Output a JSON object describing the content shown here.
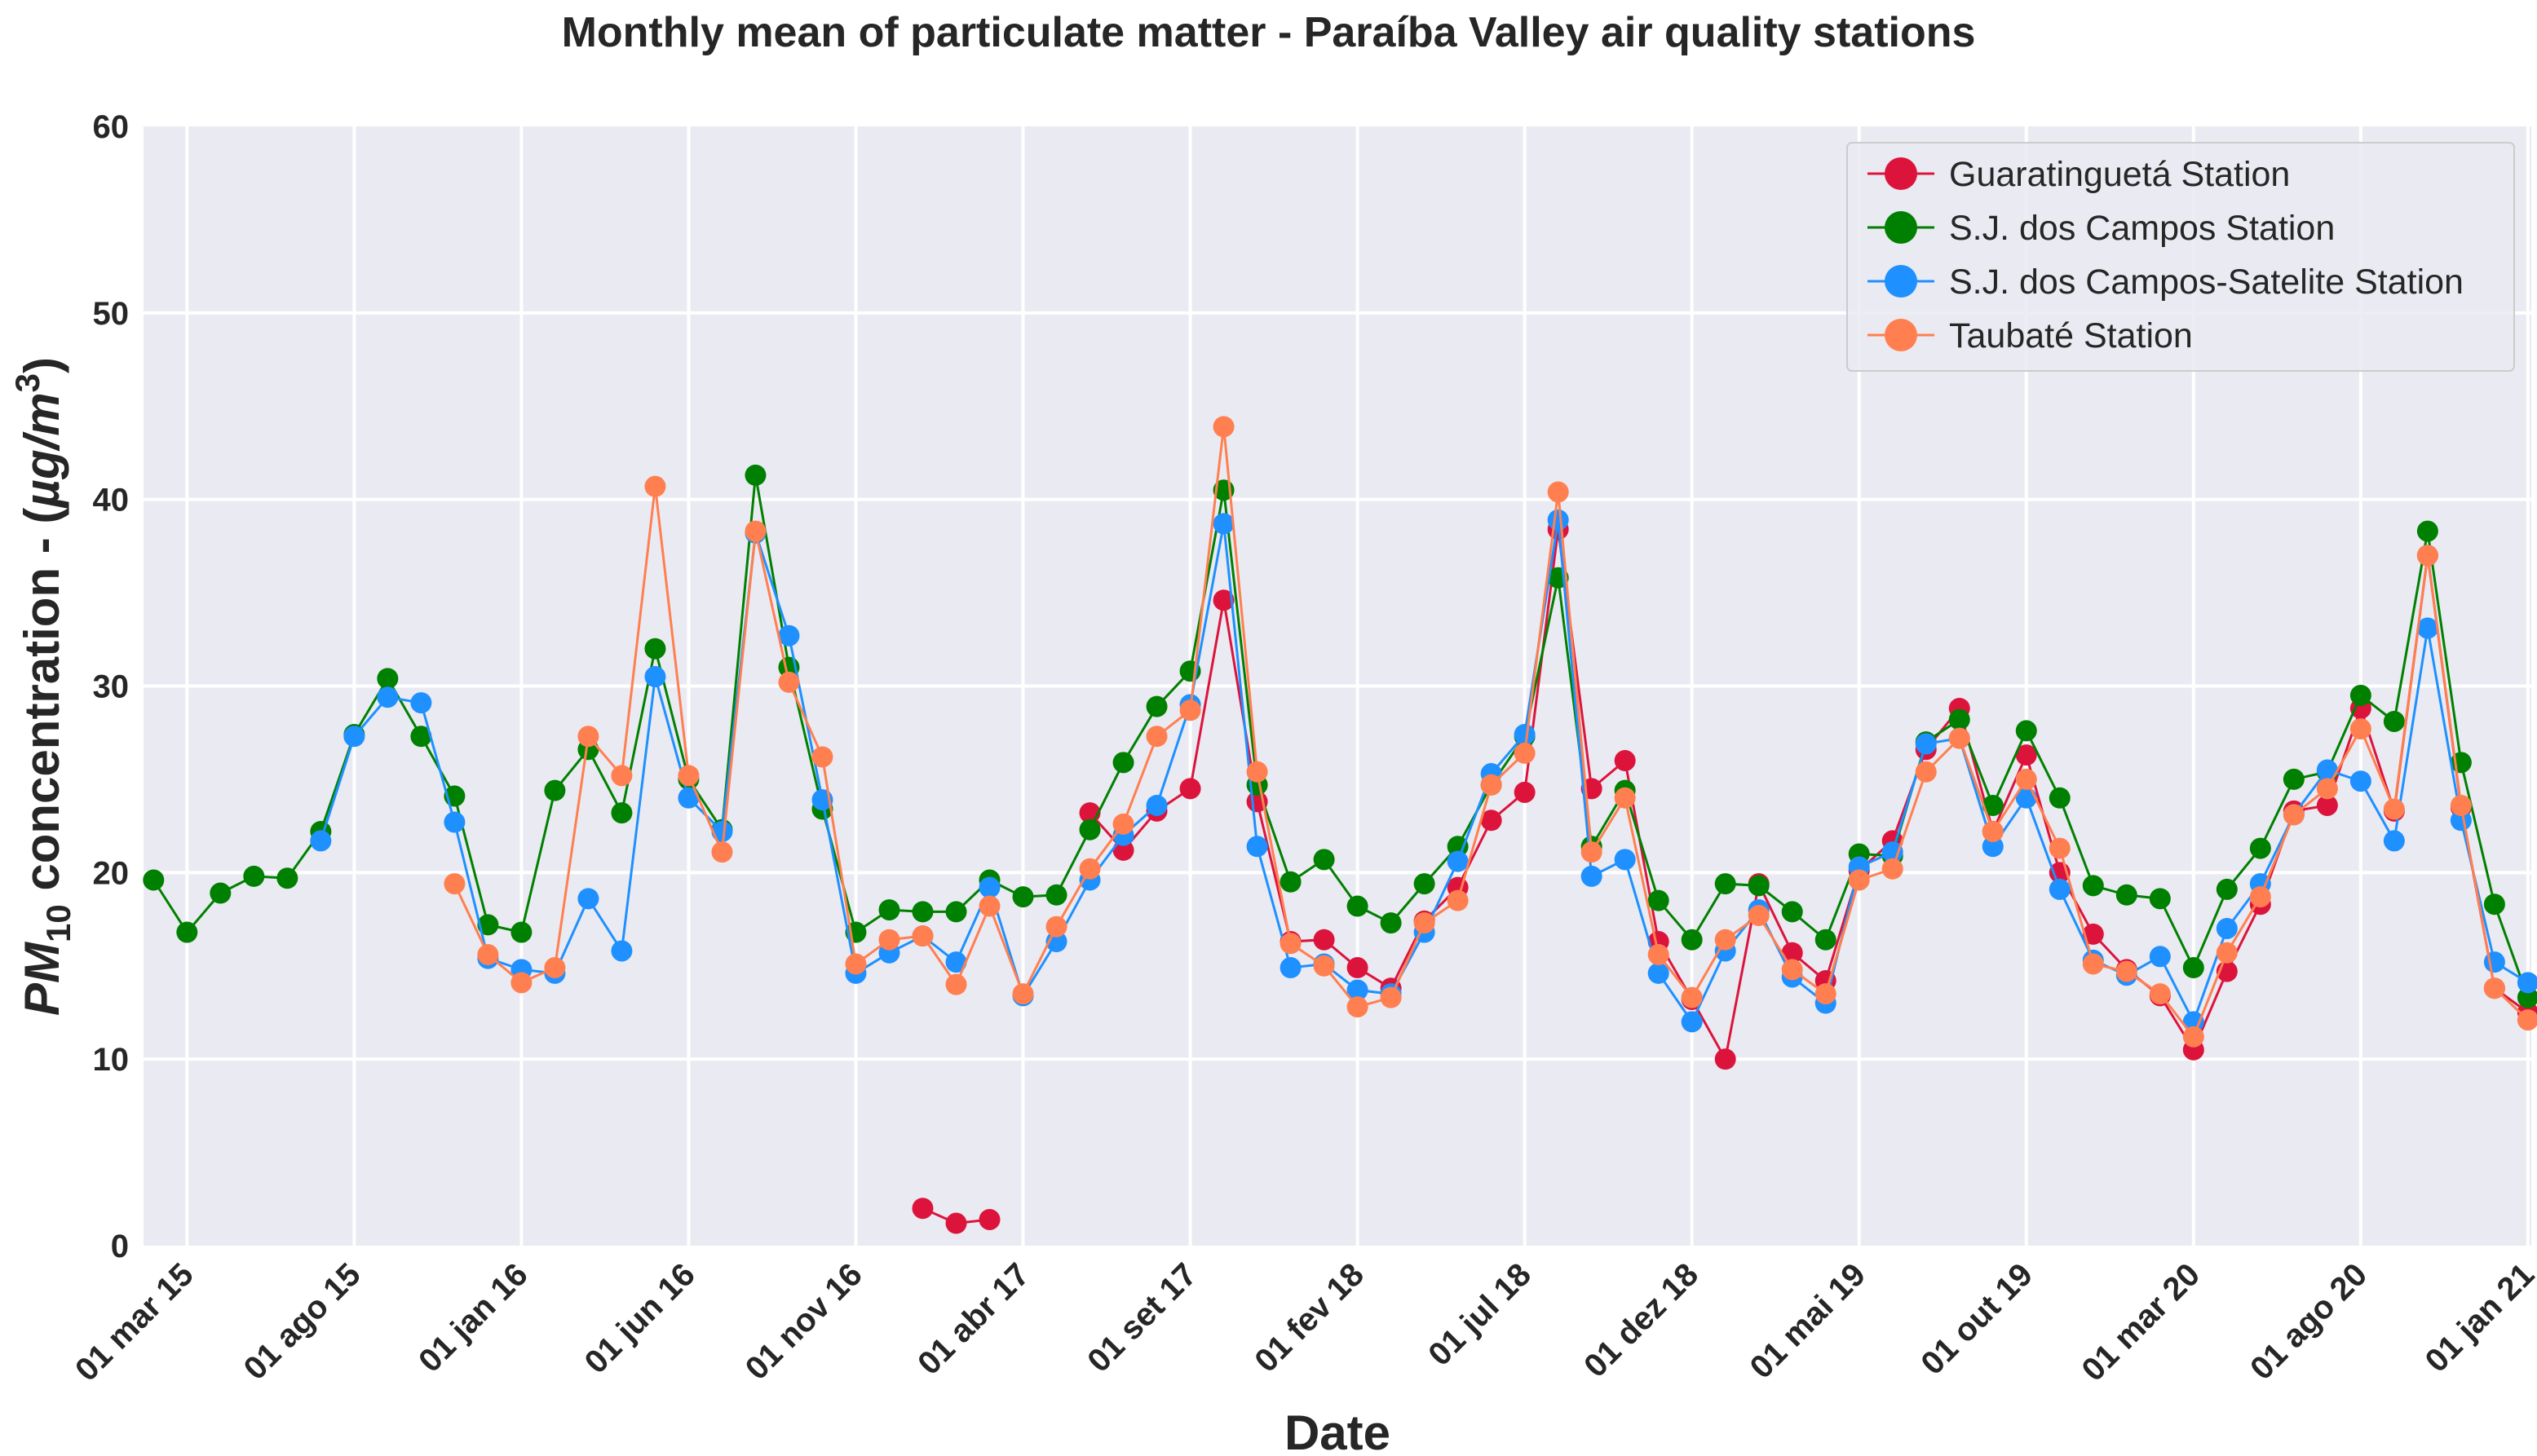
{
  "chart_data": {
    "type": "line",
    "title": "Monthly mean of particulate matter - Paraíba Valley air quality stations",
    "xlabel": "Date",
    "ylabel": "PM10 concentration - (µg/m3)",
    "ylabel_parts": {
      "pm": "PM",
      "sub": "10",
      "mid": " concentration - (",
      "unit": "µg/m",
      "sup": "3",
      "end": ")"
    },
    "ylim": [
      0,
      60
    ],
    "yticks": [
      0,
      10,
      20,
      30,
      40,
      50,
      60
    ],
    "xlim": [
      -1.3,
      70.1
    ],
    "xticks": [
      {
        "month": 0,
        "label": "01 mar 15"
      },
      {
        "month": 5,
        "label": "01 ago 15"
      },
      {
        "month": 10,
        "label": "01 jan 16"
      },
      {
        "month": 15,
        "label": "01 jun 16"
      },
      {
        "month": 20,
        "label": "01 nov 16"
      },
      {
        "month": 25,
        "label": "01 abr 17"
      },
      {
        "month": 30,
        "label": "01 set 17"
      },
      {
        "month": 35,
        "label": "01 fev 18"
      },
      {
        "month": 40,
        "label": "01 jul 18"
      },
      {
        "month": 45,
        "label": "01 dez 18"
      },
      {
        "month": 50,
        "label": "01 mai 19"
      },
      {
        "month": 55,
        "label": "01 out 19"
      },
      {
        "month": 60,
        "label": "01 mar 20"
      },
      {
        "month": 65,
        "label": "01 ago 20"
      },
      {
        "month": 70,
        "label": "01 jan 21"
      }
    ],
    "x_unit": "months offset from 01 mar 15; points plotted at month-end (offset - 1)",
    "grid": true,
    "legend_position": "top-right",
    "series": [
      {
        "name": "Guaratinguetá Station",
        "color": "#dc143c",
        "segments": [
          [
            [
              23,
              2.0
            ],
            [
              24,
              1.2
            ],
            [
              25,
              1.4
            ]
          ],
          [
            [
              28,
              23.2
            ],
            [
              29,
              21.2
            ],
            [
              30,
              23.3
            ],
            [
              31,
              24.5
            ],
            [
              32,
              34.6
            ],
            [
              33,
              23.8
            ],
            [
              34,
              16.3
            ],
            [
              35,
              16.4
            ],
            [
              36,
              14.9
            ],
            [
              37,
              13.8
            ],
            [
              38,
              17.4
            ],
            [
              39,
              19.2
            ],
            [
              40,
              22.8
            ],
            [
              41,
              24.3
            ],
            [
              42,
              38.4
            ],
            [
              43,
              24.5
            ],
            [
              44,
              26.0
            ],
            [
              45,
              16.3
            ],
            [
              46,
              13.2
            ],
            [
              47,
              10.0
            ],
            [
              48,
              19.4
            ],
            [
              49,
              15.7
            ],
            [
              50,
              14.2
            ],
            [
              51,
              20.1
            ],
            [
              52,
              21.7
            ],
            [
              53,
              26.6
            ],
            [
              54,
              28.8
            ],
            [
              55,
              22.2
            ],
            [
              56,
              26.3
            ],
            [
              57,
              20.0
            ],
            [
              58,
              16.7
            ],
            [
              59,
              14.8
            ],
            [
              60,
              13.4
            ],
            [
              61,
              10.5
            ],
            [
              62,
              14.7
            ],
            [
              63,
              18.3
            ],
            [
              64,
              23.3
            ],
            [
              65,
              23.6
            ],
            [
              66,
              28.8
            ],
            [
              67,
              23.3
            ],
            [
              68,
              37.0
            ],
            [
              69,
              23.5
            ],
            [
              70,
              13.8
            ],
            [
              71,
              12.5
            ]
          ]
        ]
      },
      {
        "name": "S.J. dos Campos Station",
        "color": "#008000",
        "segments": [
          [
            [
              0,
              19.6
            ],
            [
              1,
              16.8
            ],
            [
              2,
              18.9
            ],
            [
              3,
              19.8
            ],
            [
              4,
              19.7
            ],
            [
              5,
              22.2
            ],
            [
              6,
              27.4
            ],
            [
              7,
              30.4
            ],
            [
              8,
              27.3
            ],
            [
              9,
              24.1
            ],
            [
              10,
              17.2
            ],
            [
              11,
              16.8
            ],
            [
              12,
              24.4
            ],
            [
              13,
              26.6
            ],
            [
              14,
              23.2
            ],
            [
              15,
              32.0
            ],
            [
              16,
              25.0
            ],
            [
              17,
              22.3
            ],
            [
              18,
              41.3
            ],
            [
              19,
              31.0
            ],
            [
              20,
              23.4
            ],
            [
              21,
              16.8
            ],
            [
              22,
              18.0
            ],
            [
              23,
              17.9
            ],
            [
              24,
              17.9
            ],
            [
              25,
              19.6
            ],
            [
              26,
              18.7
            ],
            [
              27,
              18.8
            ],
            [
              28,
              22.3
            ],
            [
              29,
              25.9
            ],
            [
              30,
              28.9
            ],
            [
              31,
              30.8
            ],
            [
              32,
              40.5
            ],
            [
              33,
              24.7
            ],
            [
              34,
              19.5
            ],
            [
              35,
              20.7
            ],
            [
              36,
              18.2
            ],
            [
              37,
              17.3
            ],
            [
              38,
              19.4
            ],
            [
              39,
              21.4
            ],
            [
              40,
              24.7
            ],
            [
              41,
              27.3
            ],
            [
              42,
              35.8
            ],
            [
              43,
              21.4
            ],
            [
              44,
              24.4
            ],
            [
              45,
              18.5
            ],
            [
              46,
              16.4
            ],
            [
              47,
              19.4
            ],
            [
              48,
              19.3
            ],
            [
              49,
              17.9
            ],
            [
              50,
              16.4
            ],
            [
              51,
              21.0
            ],
            [
              52,
              20.9
            ],
            [
              53,
              27.0
            ],
            [
              54,
              28.2
            ],
            [
              55,
              23.6
            ],
            [
              56,
              27.6
            ],
            [
              57,
              24.0
            ],
            [
              58,
              19.3
            ],
            [
              59,
              18.8
            ],
            [
              60,
              18.6
            ],
            [
              61,
              14.9
            ],
            [
              62,
              19.1
            ],
            [
              63,
              21.3
            ],
            [
              64,
              25.0
            ],
            [
              65,
              25.4
            ],
            [
              66,
              29.5
            ],
            [
              67,
              28.1
            ],
            [
              68,
              38.3
            ],
            [
              69,
              25.9
            ],
            [
              70,
              18.3
            ],
            [
              71,
              13.3
            ]
          ]
        ]
      },
      {
        "name": "S.J. dos Campos-Satelite Station",
        "color": "#1e90ff",
        "segments": [
          [
            [
              5,
              21.7
            ],
            [
              6,
              27.3
            ],
            [
              7,
              29.4
            ],
            [
              8,
              29.1
            ],
            [
              9,
              22.7
            ],
            [
              10,
              15.4
            ],
            [
              11,
              14.8
            ],
            [
              12,
              14.6
            ],
            [
              13,
              18.6
            ],
            [
              14,
              15.8
            ],
            [
              15,
              30.5
            ],
            [
              16,
              24.0
            ],
            [
              17,
              22.2
            ],
            [
              18,
              38.2
            ],
            [
              19,
              32.7
            ],
            [
              20,
              23.9
            ],
            [
              21,
              14.6
            ],
            [
              22,
              15.7
            ],
            [
              23,
              16.6
            ],
            [
              24,
              15.2
            ],
            [
              25,
              19.2
            ],
            [
              26,
              13.4
            ],
            [
              27,
              16.3
            ],
            [
              28,
              19.6
            ],
            [
              29,
              22.0
            ],
            [
              30,
              23.6
            ],
            [
              31,
              29.0
            ],
            [
              32,
              38.7
            ],
            [
              33,
              21.4
            ],
            [
              34,
              14.9
            ],
            [
              35,
              15.1
            ],
            [
              36,
              13.7
            ],
            [
              37,
              13.5
            ],
            [
              38,
              16.8
            ],
            [
              39,
              20.6
            ],
            [
              40,
              25.3
            ],
            [
              41,
              27.4
            ],
            [
              42,
              38.9
            ],
            [
              43,
              19.8
            ],
            [
              44,
              20.7
            ],
            [
              45,
              14.6
            ],
            [
              46,
              12.0
            ],
            [
              47,
              15.8
            ],
            [
              48,
              18.0
            ],
            [
              49,
              14.4
            ],
            [
              50,
              13.0
            ],
            [
              51,
              20.3
            ],
            [
              52,
              21.1
            ],
            [
              53,
              26.9
            ],
            [
              54,
              27.2
            ],
            [
              55,
              21.4
            ],
            [
              56,
              24.0
            ],
            [
              57,
              19.1
            ],
            [
              58,
              15.3
            ],
            [
              59,
              14.5
            ],
            [
              60,
              15.5
            ],
            [
              61,
              12.0
            ],
            [
              62,
              17.0
            ],
            [
              63,
              19.4
            ],
            [
              64,
              23.1
            ],
            [
              65,
              25.5
            ],
            [
              66,
              24.9
            ],
            [
              67,
              21.7
            ],
            [
              68,
              33.1
            ],
            [
              69,
              22.8
            ],
            [
              70,
              15.2
            ],
            [
              71,
              14.1
            ]
          ]
        ]
      },
      {
        "name": "Taubaté Station",
        "color": "#ff7f50",
        "segments": [
          [
            [
              9,
              19.4
            ],
            [
              10,
              15.6
            ],
            [
              11,
              14.1
            ],
            [
              12,
              14.9
            ],
            [
              13,
              27.3
            ],
            [
              14,
              25.2
            ],
            [
              15,
              40.7
            ],
            [
              16,
              25.2
            ],
            [
              17,
              21.1
            ],
            [
              18,
              38.3
            ],
            [
              19,
              30.2
            ],
            [
              20,
              26.2
            ],
            [
              21,
              15.1
            ],
            [
              22,
              16.4
            ],
            [
              23,
              16.6
            ],
            [
              24,
              14.0
            ],
            [
              25,
              18.2
            ],
            [
              26,
              13.5
            ],
            [
              27,
              17.1
            ],
            [
              28,
              20.2
            ],
            [
              29,
              22.6
            ],
            [
              30,
              27.3
            ],
            [
              31,
              28.7
            ],
            [
              32,
              43.9
            ],
            [
              33,
              25.4
            ],
            [
              34,
              16.2
            ],
            [
              35,
              15.0
            ],
            [
              36,
              12.8
            ],
            [
              37,
              13.3
            ],
            [
              38,
              17.3
            ],
            [
              39,
              18.5
            ],
            [
              40,
              24.7
            ],
            [
              41,
              26.4
            ],
            [
              42,
              40.4
            ],
            [
              43,
              21.1
            ],
            [
              44,
              24.0
            ],
            [
              45,
              15.6
            ],
            [
              46,
              13.3
            ],
            [
              47,
              16.4
            ],
            [
              48,
              17.7
            ],
            [
              49,
              14.8
            ],
            [
              50,
              13.5
            ],
            [
              51,
              19.6
            ],
            [
              52,
              20.2
            ],
            [
              53,
              25.4
            ],
            [
              54,
              27.2
            ],
            [
              55,
              22.2
            ],
            [
              56,
              25.0
            ],
            [
              57,
              21.3
            ],
            [
              58,
              15.1
            ],
            [
              59,
              14.7
            ],
            [
              60,
              13.5
            ],
            [
              61,
              11.2
            ],
            [
              62,
              15.7
            ],
            [
              63,
              18.7
            ],
            [
              64,
              23.1
            ],
            [
              65,
              24.5
            ],
            [
              66,
              27.7
            ],
            [
              67,
              23.4
            ],
            [
              68,
              37.0
            ],
            [
              69,
              23.6
            ],
            [
              70,
              13.8
            ],
            [
              71,
              12.1
            ]
          ]
        ]
      }
    ]
  }
}
